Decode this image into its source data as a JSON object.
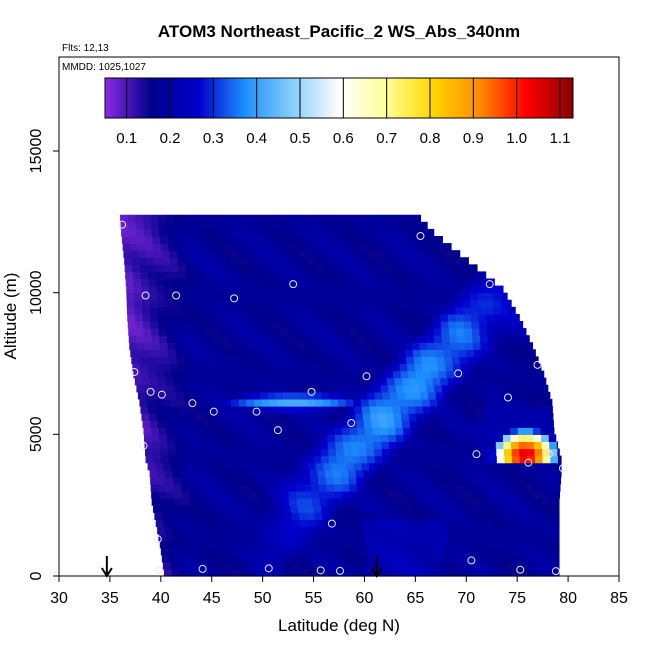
{
  "chart_data": {
    "type": "heatmap",
    "title": "ATOM3 Northeast_Pacific_2 WS_Abs_340nm",
    "flights_label": "Flts: 12,13",
    "dates_label": "MMDD: 1025,1027",
    "xlabel": "Latitude (deg N)",
    "ylabel": "Altitude (m)",
    "xlim": [
      30,
      85
    ],
    "ylim": [
      0,
      17500
    ],
    "x_ticks": [
      "30",
      "35",
      "40",
      "45",
      "50",
      "55",
      "60",
      "65",
      "70",
      "75",
      "80",
      "85"
    ],
    "y_ticks": [
      "0",
      "5000",
      "10000",
      "15000"
    ],
    "colorbar": {
      "ticks": [
        "0.1",
        "0.2",
        "0.3",
        "0.4",
        "0.5",
        "0.6",
        "0.7",
        "0.8",
        "0.9",
        "1.0",
        "1.1"
      ],
      "range": [
        0.05,
        1.13
      ],
      "colors": [
        "#8a2be2",
        "#00008b",
        "#0000cd",
        "#1e90ff",
        "#87cefa",
        "#ffffff",
        "#ffff99",
        "#ffd700",
        "#ff8c00",
        "#ff0000",
        "#8b0000"
      ]
    },
    "arrows_x": [
      34.7,
      61.2
    ],
    "sample_points": [
      {
        "x": 36.2,
        "y": 12400
      },
      {
        "x": 65.5,
        "y": 12000
      },
      {
        "x": 38.5,
        "y": 9900
      },
      {
        "x": 41.5,
        "y": 9900
      },
      {
        "x": 47.2,
        "y": 9800
      },
      {
        "x": 53,
        "y": 10300
      },
      {
        "x": 72.3,
        "y": 10300
      },
      {
        "x": 37.4,
        "y": 7200
      },
      {
        "x": 60.2,
        "y": 7050
      },
      {
        "x": 69.2,
        "y": 7150
      },
      {
        "x": 77,
        "y": 7450
      },
      {
        "x": 39,
        "y": 6500
      },
      {
        "x": 40.1,
        "y": 6400
      },
      {
        "x": 54.8,
        "y": 6500
      },
      {
        "x": 43.1,
        "y": 6100
      },
      {
        "x": 74.1,
        "y": 6300
      },
      {
        "x": 45.2,
        "y": 5800
      },
      {
        "x": 49.4,
        "y": 5800
      },
      {
        "x": 58.7,
        "y": 5400
      },
      {
        "x": 51.5,
        "y": 5150
      },
      {
        "x": 38.3,
        "y": 4600
      },
      {
        "x": 71,
        "y": 4300
      },
      {
        "x": 78.1,
        "y": 4300
      },
      {
        "x": 76.1,
        "y": 4000
      },
      {
        "x": 79.5,
        "y": 3800
      },
      {
        "x": 56.8,
        "y": 1850
      },
      {
        "x": 39.7,
        "y": 1300
      },
      {
        "x": 70.5,
        "y": 550
      },
      {
        "x": 39.8,
        "y": 200
      },
      {
        "x": 44.1,
        "y": 250
      },
      {
        "x": 50.6,
        "y": 270
      },
      {
        "x": 55.7,
        "y": 200
      },
      {
        "x": 57.6,
        "y": 180
      },
      {
        "x": 75.3,
        "y": 220
      },
      {
        "x": 78.8,
        "y": 170
      }
    ],
    "domain_boundary": [
      {
        "alt": 0,
        "lat_min": 40.3,
        "lat_max": 79.1
      },
      {
        "alt": 1000,
        "lat_min": 39.9,
        "lat_max": 79.1
      },
      {
        "alt": 2500,
        "lat_min": 39.1,
        "lat_max": 79.1
      },
      {
        "alt": 3500,
        "lat_min": 38.9,
        "lat_max": 79.3
      },
      {
        "alt": 4000,
        "lat_min": 38.5,
        "lat_max": 79.3
      },
      {
        "alt": 5000,
        "lat_min": 38.3,
        "lat_max": 78.6
      },
      {
        "alt": 6000,
        "lat_min": 37.9,
        "lat_max": 78.4
      },
      {
        "alt": 7000,
        "lat_min": 37.3,
        "lat_max": 77.6
      },
      {
        "alt": 8000,
        "lat_min": 36.9,
        "lat_max": 76.5
      },
      {
        "alt": 9000,
        "lat_min": 36.7,
        "lat_max": 75.2
      },
      {
        "alt": 10000,
        "lat_min": 36.6,
        "lat_max": 73.6
      },
      {
        "alt": 11000,
        "lat_min": 36.4,
        "lat_max": 70.2
      },
      {
        "alt": 12000,
        "lat_min": 36.1,
        "lat_max": 66.8
      },
      {
        "alt": 12500,
        "lat_min": 36.0,
        "lat_max": 65.5
      }
    ],
    "features": [
      {
        "lat_min": 41.5,
        "lat_max": 62.0,
        "alt_min": 5500,
        "alt_max": 6400,
        "lat_peak": 53.0,
        "alt_peak": 6150,
        "peak": 0.42
      },
      {
        "lat_min": 71.5,
        "lat_max": 79.0,
        "alt_min": 3900,
        "alt_max": 6000,
        "lat_peak": 75.8,
        "alt_peak": 4300,
        "peak": 1.05
      }
    ]
  }
}
